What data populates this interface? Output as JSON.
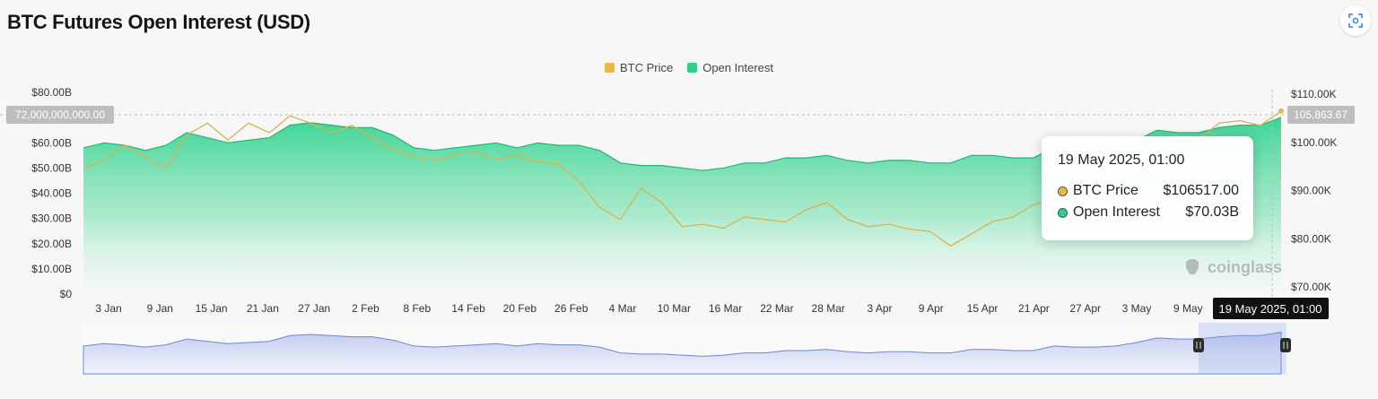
{
  "page": {
    "title": "BTC Futures Open Interest (USD)"
  },
  "icons": {
    "expand": "fullscreen-icon",
    "watermark": "coinglass-logo"
  },
  "tooltip": {
    "date": "19 May 2025, 01:00",
    "rows": [
      {
        "label": "BTC Price",
        "value": "$106517.00"
      },
      {
        "label": "Open Interest",
        "value": "$70.03B"
      }
    ]
  },
  "crosshair": {
    "left_label": "72,000,000,000.00",
    "right_label": "105,863.67",
    "x_label": "19 May 2025, 01:00"
  },
  "watermark": {
    "text": "coinglass"
  },
  "colors": {
    "btc_price": "#e8b84a",
    "open_interest": "#2fcf8a",
    "navigator": "#6b86d6"
  },
  "chart_data": {
    "type": "area",
    "title": "BTC Futures Open Interest (USD)",
    "legend": [
      "BTC Price",
      "Open Interest"
    ],
    "legend_position": "top-center",
    "x_ticks": [
      "3 Jan",
      "9 Jan",
      "15 Jan",
      "21 Jan",
      "27 Jan",
      "2 Feb",
      "8 Feb",
      "14 Feb",
      "20 Feb",
      "26 Feb",
      "4 Mar",
      "10 Mar",
      "16 Mar",
      "22 Mar",
      "28 Mar",
      "3 Apr",
      "9 Apr",
      "15 Apr",
      "21 Apr",
      "27 Apr",
      "3 May",
      "9 May"
    ],
    "y_left": {
      "ticks": [
        "$0",
        "$10.00B",
        "$20.00B",
        "$30.00B",
        "$40.00B",
        "$50.00B",
        "$60.00B",
        "$80.00B"
      ],
      "ylim": [
        0,
        80
      ]
    },
    "y_right": {
      "ticks": [
        "$70.00K",
        "$80.00K",
        "$90.00K",
        "$100.00K",
        "$110.00K"
      ],
      "ylim": [
        70000,
        110000
      ]
    },
    "series": [
      {
        "name": "Open Interest",
        "axis": "left",
        "unit": "B USD",
        "values": [
          58,
          60,
          59,
          57,
          59,
          64,
          62,
          60,
          61,
          62,
          67,
          68,
          67,
          66,
          66,
          63,
          58,
          57,
          58,
          59,
          60,
          58,
          60,
          59,
          59,
          57,
          52,
          51,
          51,
          50,
          49,
          50,
          52,
          52,
          54,
          54,
          55,
          53,
          52,
          53,
          53,
          52,
          52,
          55,
          55,
          54,
          54,
          58,
          57,
          57,
          58,
          61,
          65,
          64,
          64,
          66,
          67,
          67,
          70
        ]
      },
      {
        "name": "BTC Price",
        "axis": "right",
        "unit": "USD",
        "values": [
          94500,
          96200,
          99400,
          97000,
          94500,
          101500,
          104000,
          100500,
          104000,
          102000,
          105500,
          104000,
          102000,
          103500,
          101000,
          98500,
          97000,
          96300,
          97500,
          97800,
          96500,
          97400,
          96000,
          95500,
          92000,
          86500,
          84000,
          90500,
          87500,
          82500,
          83000,
          82200,
          84500,
          84000,
          83500,
          86000,
          87500,
          84000,
          82500,
          83000,
          82000,
          81500,
          78500,
          81000,
          83500,
          84500,
          87000,
          88500,
          91000,
          94000,
          95000,
          94500,
          96500,
          97000,
          100500,
          104000,
          104500,
          103500,
          106517
        ]
      }
    ]
  }
}
